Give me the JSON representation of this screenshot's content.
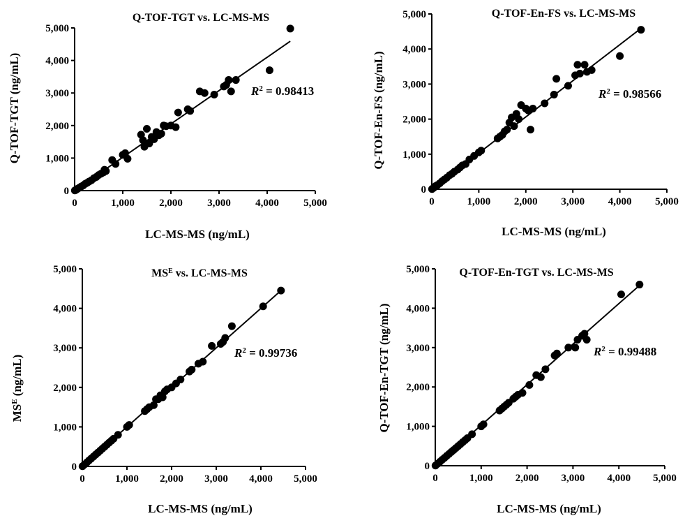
{
  "figure": {
    "axis_color": "#000000",
    "marker_color": "#000000",
    "background": "#ffffff"
  },
  "chart_data": [
    {
      "type": "scatter",
      "title": "Q-TOF-TGT vs. LC-MS-MS",
      "xlabel": "LC-MS-MS (ng/mL)",
      "ylabel": "Q-TOF-TGT (ng/mL)",
      "xlim": [
        0,
        5000
      ],
      "ylim": [
        0,
        5000
      ],
      "x_ticks": [
        0,
        1000,
        2000,
        3000,
        4000,
        5000
      ],
      "y_ticks": [
        0,
        1000,
        2000,
        3000,
        4000,
        5000
      ],
      "x_tick_labels": [
        "0",
        "1,000",
        "2,000",
        "3,000",
        "4,000",
        "5,000"
      ],
      "y_tick_labels": [
        "0",
        "1,000",
        "2,000",
        "3,000",
        "4,000",
        "5,000"
      ],
      "annotation": {
        "prefix": "R",
        "sup": "2",
        "text": " = 0.98413"
      },
      "grid": false,
      "fit_line": {
        "x": [
          0,
          4480
        ],
        "y": [
          0,
          4590
        ]
      },
      "points": [
        [
          5,
          5
        ],
        [
          30,
          25
        ],
        [
          60,
          55
        ],
        [
          100,
          90
        ],
        [
          140,
          130
        ],
        [
          180,
          160
        ],
        [
          220,
          210
        ],
        [
          260,
          240
        ],
        [
          300,
          280
        ],
        [
          350,
          320
        ],
        [
          400,
          380
        ],
        [
          450,
          420
        ],
        [
          500,
          480
        ],
        [
          550,
          520
        ],
        [
          600,
          560
        ],
        [
          650,
          600
        ],
        [
          620,
          640
        ],
        [
          780,
          940
        ],
        [
          850,
          820
        ],
        [
          1000,
          1100
        ],
        [
          1050,
          1150
        ],
        [
          1100,
          980
        ],
        [
          1380,
          1720
        ],
        [
          1420,
          1550
        ],
        [
          1450,
          1350
        ],
        [
          1500,
          1900
        ],
        [
          1550,
          1450
        ],
        [
          1600,
          1650
        ],
        [
          1650,
          1580
        ],
        [
          1700,
          1800
        ],
        [
          1750,
          1700
        ],
        [
          1800,
          1750
        ],
        [
          1850,
          2000
        ],
        [
          1900,
          1980
        ],
        [
          2000,
          2000
        ],
        [
          2100,
          1950
        ],
        [
          2150,
          2400
        ],
        [
          2350,
          2500
        ],
        [
          2400,
          2450
        ],
        [
          2600,
          3050
        ],
        [
          2700,
          3000
        ],
        [
          2900,
          2950
        ],
        [
          3100,
          3200
        ],
        [
          3150,
          3250
        ],
        [
          3200,
          3400
        ],
        [
          3250,
          3050
        ],
        [
          3350,
          3400
        ],
        [
          4050,
          3700
        ],
        [
          4480,
          4980
        ]
      ]
    },
    {
      "type": "scatter",
      "title": "Q-TOF-En-FS vs. LC-MS-MS",
      "xlabel": "LC-MS-MS (ng/mL)",
      "ylabel": "Q-TOF-En-FS (ng/mL)",
      "xlim": [
        0,
        5000
      ],
      "ylim": [
        0,
        5000
      ],
      "x_ticks": [
        0,
        1000,
        2000,
        3000,
        4000,
        5000
      ],
      "y_ticks": [
        0,
        1000,
        2000,
        3000,
        4000,
        5000
      ],
      "x_tick_labels": [
        "0",
        "1,000",
        "2,000",
        "3,000",
        "4,000",
        "5,000"
      ],
      "y_tick_labels": [
        "0",
        "1,000",
        "2,000",
        "3,000",
        "4,000",
        "5,000"
      ],
      "annotation": {
        "prefix": "R",
        "sup": "2",
        "text": " = 0.98566"
      },
      "grid": false,
      "fit_line": {
        "x": [
          0,
          4480
        ],
        "y": [
          0,
          4620
        ]
      },
      "points": [
        [
          5,
          5
        ],
        [
          40,
          40
        ],
        [
          80,
          90
        ],
        [
          120,
          120
        ],
        [
          170,
          170
        ],
        [
          220,
          230
        ],
        [
          270,
          280
        ],
        [
          320,
          330
        ],
        [
          380,
          400
        ],
        [
          430,
          440
        ],
        [
          480,
          500
        ],
        [
          550,
          560
        ],
        [
          600,
          620
        ],
        [
          650,
          680
        ],
        [
          720,
          720
        ],
        [
          800,
          850
        ],
        [
          900,
          950
        ],
        [
          1000,
          1050
        ],
        [
          1050,
          1100
        ],
        [
          1400,
          1450
        ],
        [
          1450,
          1500
        ],
        [
          1500,
          1550
        ],
        [
          1550,
          1650
        ],
        [
          1600,
          1700
        ],
        [
          1650,
          1900
        ],
        [
          1700,
          2050
        ],
        [
          1750,
          1800
        ],
        [
          1800,
          2150
        ],
        [
          1850,
          2000
        ],
        [
          1900,
          2400
        ],
        [
          2000,
          2300
        ],
        [
          2050,
          2250
        ],
        [
          2100,
          1700
        ],
        [
          2150,
          2300
        ],
        [
          2400,
          2450
        ],
        [
          2600,
          2700
        ],
        [
          2650,
          3150
        ],
        [
          2900,
          2950
        ],
        [
          3050,
          3250
        ],
        [
          3100,
          3550
        ],
        [
          3150,
          3300
        ],
        [
          3250,
          3550
        ],
        [
          3300,
          3350
        ],
        [
          3400,
          3400
        ],
        [
          4000,
          3800
        ],
        [
          4450,
          4550
        ]
      ]
    },
    {
      "type": "scatter",
      "title": "MS",
      "title_sup": "E",
      "title_rest": " vs. LC-MS-MS",
      "xlabel": "LC-MS-MS (ng/mL)",
      "ylabel": "MS",
      "ylabel_sup": "E",
      "ylabel_rest": " (ng/mL)",
      "xlim": [
        0,
        5000
      ],
      "ylim": [
        0,
        5000
      ],
      "x_ticks": [
        0,
        1000,
        2000,
        3000,
        4000,
        5000
      ],
      "y_ticks": [
        0,
        1000,
        2000,
        3000,
        4000,
        5000
      ],
      "x_tick_labels": [
        "0",
        "1,000",
        "2,000",
        "3,000",
        "4,000",
        "5,000"
      ],
      "y_tick_labels": [
        "0",
        "1,000",
        "2,000",
        "3,000",
        "4,000",
        "5,000"
      ],
      "annotation": {
        "prefix": "R",
        "sup": "2",
        "text": " = 0.99736"
      },
      "grid": false,
      "fit_line": {
        "x": [
          0,
          4450
        ],
        "y": [
          0,
          4450
        ]
      },
      "points": [
        [
          5,
          5
        ],
        [
          50,
          50
        ],
        [
          100,
          100
        ],
        [
          150,
          150
        ],
        [
          200,
          200
        ],
        [
          250,
          250
        ],
        [
          300,
          300
        ],
        [
          350,
          350
        ],
        [
          400,
          400
        ],
        [
          450,
          450
        ],
        [
          500,
          500
        ],
        [
          550,
          550
        ],
        [
          600,
          600
        ],
        [
          650,
          650
        ],
        [
          700,
          700
        ],
        [
          800,
          800
        ],
        [
          1000,
          1000
        ],
        [
          1050,
          1050
        ],
        [
          1400,
          1400
        ],
        [
          1450,
          1450
        ],
        [
          1500,
          1500
        ],
        [
          1600,
          1550
        ],
        [
          1650,
          1700
        ],
        [
          1700,
          1700
        ],
        [
          1750,
          1800
        ],
        [
          1800,
          1750
        ],
        [
          1850,
          1900
        ],
        [
          1900,
          1950
        ],
        [
          2000,
          2000
        ],
        [
          2100,
          2100
        ],
        [
          2200,
          2200
        ],
        [
          2400,
          2400
        ],
        [
          2450,
          2450
        ],
        [
          2600,
          2600
        ],
        [
          2700,
          2650
        ],
        [
          2900,
          3050
        ],
        [
          3100,
          3100
        ],
        [
          3150,
          3150
        ],
        [
          3200,
          3250
        ],
        [
          3350,
          3550
        ],
        [
          4050,
          4050
        ],
        [
          4450,
          4450
        ]
      ]
    },
    {
      "type": "scatter",
      "title": "Q-TOF-En-TGT vs. LC-MS-MS",
      "xlabel": "LC-MS-MS (ng/mL)",
      "ylabel": "Q-TOF-En-TGT (ng/mL)",
      "xlim": [
        0,
        5000
      ],
      "ylim": [
        0,
        5000
      ],
      "x_ticks": [
        0,
        1000,
        2000,
        3000,
        4000,
        5000
      ],
      "y_ticks": [
        0,
        1000,
        2000,
        3000,
        4000,
        5000
      ],
      "x_tick_labels": [
        "0",
        "1,000",
        "2,000",
        "3,000",
        "4,000",
        "5,000"
      ],
      "y_tick_labels": [
        "0",
        "1,000",
        "2,000",
        "3,000",
        "4,000",
        "5,000"
      ],
      "annotation": {
        "prefix": "R",
        "sup": "2",
        "text": " = 0.99488"
      },
      "grid": false,
      "fit_line": {
        "x": [
          0,
          4450
        ],
        "y": [
          0,
          4580
        ]
      },
      "points": [
        [
          5,
          5
        ],
        [
          50,
          50
        ],
        [
          100,
          100
        ],
        [
          150,
          150
        ],
        [
          200,
          200
        ],
        [
          250,
          250
        ],
        [
          300,
          300
        ],
        [
          350,
          350
        ],
        [
          400,
          400
        ],
        [
          450,
          450
        ],
        [
          500,
          500
        ],
        [
          550,
          550
        ],
        [
          600,
          600
        ],
        [
          650,
          650
        ],
        [
          700,
          700
        ],
        [
          800,
          800
        ],
        [
          1000,
          1000
        ],
        [
          1050,
          1050
        ],
        [
          1400,
          1400
        ],
        [
          1450,
          1450
        ],
        [
          1500,
          1500
        ],
        [
          1550,
          1550
        ],
        [
          1600,
          1600
        ],
        [
          1700,
          1700
        ],
        [
          1750,
          1750
        ],
        [
          1800,
          1800
        ],
        [
          1900,
          1850
        ],
        [
          2050,
          2050
        ],
        [
          2200,
          2300
        ],
        [
          2300,
          2250
        ],
        [
          2400,
          2450
        ],
        [
          2600,
          2800
        ],
        [
          2650,
          2850
        ],
        [
          2900,
          3000
        ],
        [
          3050,
          3000
        ],
        [
          3100,
          3200
        ],
        [
          3200,
          3300
        ],
        [
          3250,
          3350
        ],
        [
          3300,
          3200
        ],
        [
          4050,
          4350
        ],
        [
          4450,
          4600
        ]
      ]
    }
  ]
}
